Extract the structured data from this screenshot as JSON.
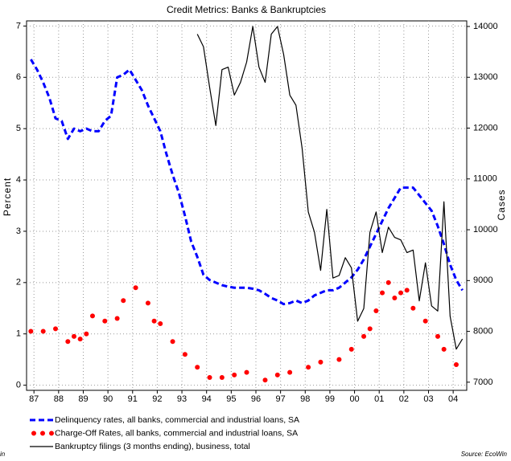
{
  "chart_data": {
    "type": "line",
    "title": "Credit Metrics: Banks & Bankruptcies",
    "y_label": "Percent",
    "y2_label": "Cases",
    "source": "Source: EcoWin",
    "left_fragment": "in",
    "legend": "bottom",
    "grid": true,
    "xlim": [
      1987.2,
      2005.05
    ],
    "xticks": [
      {
        "value": 1987.5,
        "label": "87"
      },
      {
        "value": 1988.5,
        "label": "88"
      },
      {
        "value": 1989.5,
        "label": "89"
      },
      {
        "value": 1990.5,
        "label": "90"
      },
      {
        "value": 1991.5,
        "label": "91"
      },
      {
        "value": 1992.5,
        "label": "92"
      },
      {
        "value": 1993.5,
        "label": "93"
      },
      {
        "value": 1994.5,
        "label": "94"
      },
      {
        "value": 1995.5,
        "label": "95"
      },
      {
        "value": 1996.5,
        "label": "96"
      },
      {
        "value": 1997.5,
        "label": "97"
      },
      {
        "value": 1998.5,
        "label": "98"
      },
      {
        "value": 1999.5,
        "label": "99"
      },
      {
        "value": 2000.5,
        "label": "00"
      },
      {
        "value": 2001.5,
        "label": "01"
      },
      {
        "value": 2002.5,
        "label": "02"
      },
      {
        "value": 2003.5,
        "label": "03"
      },
      {
        "value": 2004.5,
        "label": "04"
      }
    ],
    "ylim": [
      -0.1,
      7.1
    ],
    "yticks": [
      0,
      1,
      2,
      3,
      4,
      5,
      6,
      7
    ],
    "y2lim": [
      6840,
      14110
    ],
    "y2ticks": [
      7000,
      8000,
      9000,
      10000,
      11000,
      12000,
      13000,
      14000
    ],
    "x": [
      1987.375,
      1987.625,
      1987.875,
      1988.125,
      1988.375,
      1988.625,
      1988.875,
      1989.125,
      1989.375,
      1989.625,
      1989.875,
      1990.125,
      1990.375,
      1990.625,
      1990.875,
      1991.125,
      1991.375,
      1991.625,
      1991.875,
      1992.125,
      1992.375,
      1992.625,
      1992.875,
      1993.125,
      1993.375,
      1993.625,
      1993.875,
      1994.125,
      1994.375,
      1994.625,
      1994.875,
      1995.125,
      1995.375,
      1995.625,
      1995.875,
      1996.125,
      1996.375,
      1996.625,
      1996.875,
      1997.125,
      1997.375,
      1997.625,
      1997.875,
      1998.125,
      1998.375,
      1998.625,
      1998.875,
      1999.125,
      1999.375,
      1999.625,
      1999.875,
      2000.125,
      2000.375,
      2000.625,
      2000.875,
      2001.125,
      2001.375,
      2001.625,
      2001.875,
      2002.125,
      2002.375,
      2002.625,
      2002.875,
      2003.125,
      2003.375,
      2003.625,
      2003.875,
      2004.125,
      2004.375,
      2004.625,
      2004.875
    ],
    "series": [
      {
        "name": "Delinquency rates, all banks, commercial and industrial loans, SA",
        "color": "#0000ff",
        "style": "dashed",
        "values": [
          6.35,
          6.15,
          5.9,
          5.6,
          5.2,
          5.15,
          4.8,
          5.0,
          4.95,
          5.0,
          4.95,
          4.95,
          5.15,
          5.25,
          6.0,
          6.05,
          6.15,
          5.95,
          5.75,
          5.45,
          5.2,
          4.95,
          4.5,
          4.1,
          3.75,
          3.3,
          2.8,
          2.5,
          2.15,
          2.05,
          2.0,
          1.95,
          1.92,
          1.9,
          1.9,
          1.9,
          1.88,
          1.85,
          1.78,
          1.7,
          1.65,
          1.58,
          1.6,
          1.65,
          1.6,
          1.65,
          1.75,
          1.8,
          1.85,
          1.85,
          1.9,
          2.0,
          2.1,
          2.25,
          2.45,
          2.7,
          2.95,
          3.2,
          3.45,
          3.65,
          3.85,
          3.85,
          3.85,
          3.7,
          3.55,
          3.4,
          3.1,
          2.75,
          2.35,
          2.05,
          1.85
        ]
      },
      {
        "name": "Charge-Off Rates, all banks, commercial and industrial loans, SA",
        "color": "#ff0000",
        "style": "dots",
        "values": [
          1.05,
          null,
          1.05,
          null,
          1.1,
          null,
          0.85,
          0.95,
          0.9,
          1.0,
          1.35,
          null,
          1.25,
          null,
          1.3,
          1.65,
          null,
          1.9,
          null,
          1.6,
          1.25,
          1.2,
          null,
          0.85,
          null,
          0.6,
          null,
          0.35,
          null,
          0.15,
          null,
          0.15,
          null,
          0.2,
          null,
          0.25,
          null,
          null,
          0.1,
          null,
          0.2,
          null,
          0.25,
          null,
          null,
          0.35,
          null,
          0.45,
          null,
          null,
          0.5,
          null,
          0.7,
          null,
          0.95,
          1.1,
          1.45,
          1.8,
          2.0,
          1.7,
          1.8,
          1.85,
          1.5,
          null,
          1.25,
          null,
          0.95,
          0.7,
          null,
          0.4,
          null
        ]
      },
      {
        "name": "Bankruptcy filings (3 months ending), business, total",
        "color": "#000000",
        "style": "line",
        "axis": "y2",
        "values": [
          null,
          null,
          null,
          null,
          null,
          null,
          null,
          null,
          null,
          null,
          null,
          null,
          null,
          null,
          null,
          null,
          null,
          null,
          null,
          null,
          null,
          null,
          null,
          null,
          null,
          null,
          null,
          13850,
          13600,
          12800,
          12050,
          13150,
          13200,
          12650,
          12900,
          13300,
          14000,
          13200,
          12900,
          13850,
          14000,
          13450,
          12650,
          12450,
          11600,
          10350,
          9950,
          9200,
          10400,
          9050,
          9100,
          9450,
          9250,
          8200,
          8450,
          9950,
          10350,
          9550,
          10050,
          9850,
          9800,
          9550,
          9600,
          8600,
          9350,
          8500,
          8400,
          10550,
          8300,
          7650,
          7850
        ]
      }
    ]
  }
}
